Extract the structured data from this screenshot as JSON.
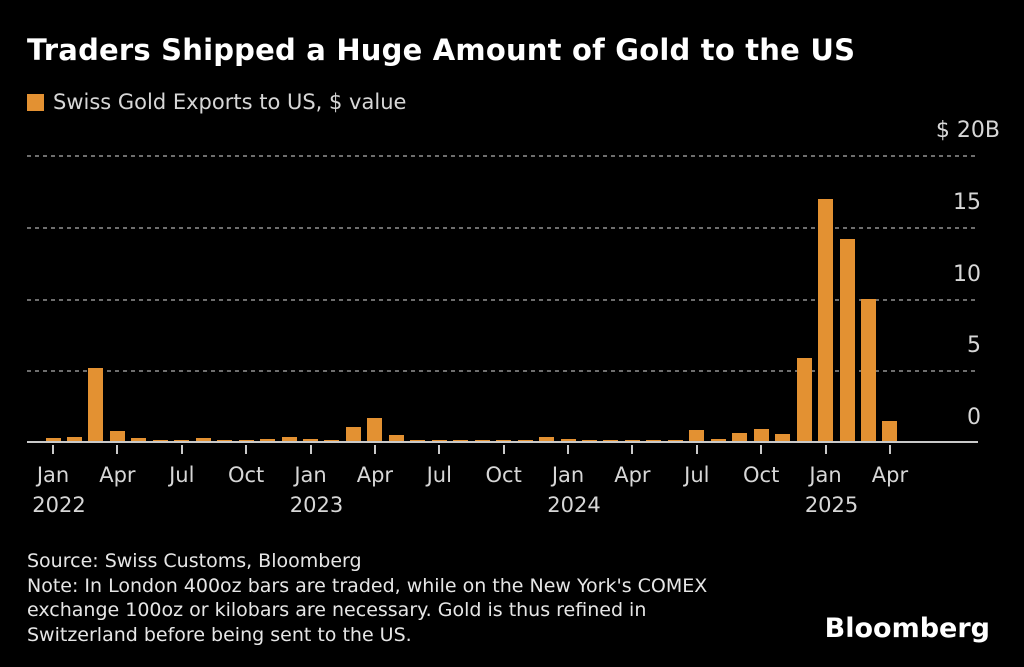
{
  "title": "Traders Shipped a Huge Amount of Gold to the US",
  "legend": {
    "label": "Swiss Gold Exports to US, $ value"
  },
  "colors": {
    "background": "#000000",
    "bar": "#E39132",
    "title_text": "#FFFFFF",
    "footer_text": "#E6E6E6",
    "axis_text": "#D7D7D7",
    "gridline": "#6E6E6E",
    "axis_line": "#C9C9C9"
  },
  "chart_data": {
    "type": "bar",
    "title": "Traders Shipped a Huge Amount of Gold to the US",
    "series_name": "Swiss Gold Exports to US, $ value",
    "unit": "USD billions",
    "ylim": [
      0,
      20
    ],
    "grid": "dotted horizontal",
    "legend_position": "top-left",
    "x": [
      "Jan 2022",
      "Feb 2022",
      "Mar 2022",
      "Apr 2022",
      "May 2022",
      "Jun 2022",
      "Jul 2022",
      "Aug 2022",
      "Sep 2022",
      "Oct 2022",
      "Nov 2022",
      "Dec 2022",
      "Jan 2023",
      "Feb 2023",
      "Mar 2023",
      "Apr 2023",
      "May 2023",
      "Jun 2023",
      "Jul 2023",
      "Aug 2023",
      "Sep 2023",
      "Oct 2023",
      "Nov 2023",
      "Dec 2023",
      "Jan 2024",
      "Feb 2024",
      "Mar 2024",
      "Apr 2024",
      "May 2024",
      "Jun 2024",
      "Jul 2024",
      "Aug 2024",
      "Sep 2024",
      "Oct 2024",
      "Nov 2024",
      "Dec 2024",
      "Jan 2025",
      "Feb 2025",
      "Mar 2025",
      "Apr 2025"
    ],
    "values": [
      0.2,
      0.25,
      5.1,
      0.7,
      0.2,
      0.05,
      0.1,
      0.2,
      0.1,
      0.1,
      0.15,
      0.25,
      0.15,
      0.1,
      1.0,
      1.6,
      0.45,
      0.05,
      0.05,
      0.05,
      0.05,
      0.05,
      0.1,
      0.3,
      0.15,
      0.05,
      0.05,
      0.1,
      0.05,
      0.05,
      0.75,
      0.15,
      0.55,
      0.85,
      0.5,
      5.8,
      16.9,
      14.1,
      9.9,
      1.4
    ],
    "y_axis": {
      "labels": [
        {
          "text": "$ 20B",
          "value": 20
        },
        {
          "text": "15",
          "value": 15
        },
        {
          "text": "10",
          "value": 10
        },
        {
          "text": "5",
          "value": 5
        },
        {
          "text": "0",
          "value": 0
        }
      ]
    },
    "x_axis": {
      "ticks": [
        {
          "label": "Jan",
          "year": "2022",
          "month_index": 0
        },
        {
          "label": "Apr",
          "month_index": 3
        },
        {
          "label": "Jul",
          "month_index": 6
        },
        {
          "label": "Oct",
          "month_index": 9
        },
        {
          "label": "Jan",
          "year": "2023",
          "month_index": 12
        },
        {
          "label": "Apr",
          "month_index": 15
        },
        {
          "label": "Jul",
          "month_index": 18
        },
        {
          "label": "Oct",
          "month_index": 21
        },
        {
          "label": "Jan",
          "year": "2024",
          "month_index": 24
        },
        {
          "label": "Apr",
          "month_index": 27
        },
        {
          "label": "Jul",
          "month_index": 30
        },
        {
          "label": "Oct",
          "month_index": 33
        },
        {
          "label": "Jan",
          "year": "2025",
          "month_index": 36
        },
        {
          "label": "Apr",
          "month_index": 39
        }
      ]
    }
  },
  "footer": {
    "source": "Source: Swiss Customs, Bloomberg",
    "note_lines": [
      "Note: In London 400oz bars are traded, while on the New York's COMEX",
      "exchange 100oz or kilobars are necessary. Gold is thus refined in",
      "Switzerland before being sent to the US."
    ]
  },
  "logo": "Bloomberg"
}
